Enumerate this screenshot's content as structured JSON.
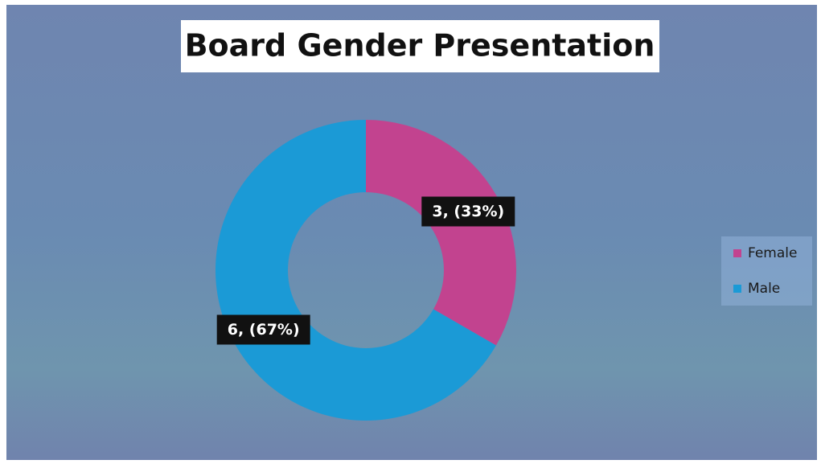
{
  "chart_data": {
    "type": "donut",
    "title": "Board Gender Presentation",
    "categories": [
      "Female",
      "Male"
    ],
    "values": [
      3,
      6
    ],
    "value_labels": [
      "3, (33%)",
      "6, (67%)"
    ],
    "colors": [
      "#c2438f",
      "#1b9ad6"
    ],
    "legend": "right"
  }
}
